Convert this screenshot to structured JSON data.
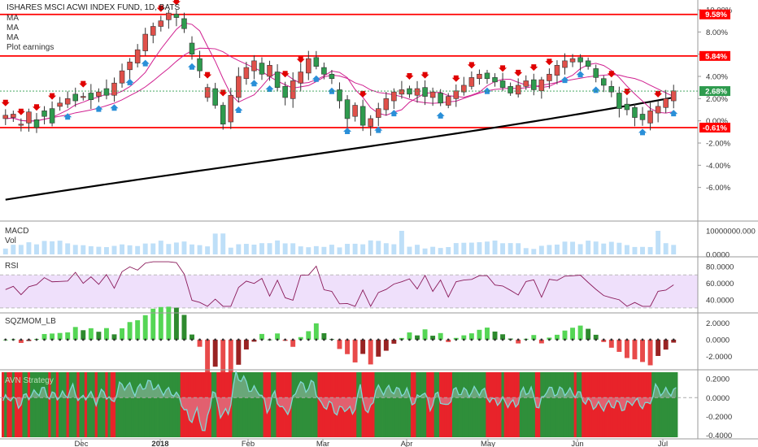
{
  "header": {
    "title": "ISHARES MSCI ACWI INDEX FUND, 1D, BATS",
    "legend": [
      "MA",
      "MA",
      "MA",
      "Plot earnings"
    ]
  },
  "colors": {
    "up": "#2e9b4e",
    "down": "#e0504a",
    "level": "#ff0000",
    "ma_long": "#000000",
    "ma_short": "#d02090",
    "arrow_up": "#2a8fd8",
    "arrow_down": "#e00000",
    "rsi_band": "#efe0fb",
    "rsi_line": "#8a1a5a",
    "vol": "#a8d4f5",
    "aqua": "#7fd9d4",
    "sqz_bright_green": "#55d655",
    "sqz_dark_green": "#2e8a2e",
    "sqz_red": "#e84a4a",
    "sqz_dark_red": "#992222",
    "bg_green": "#2f8f3a",
    "bg_red": "#e8232a"
  },
  "chart_data": [
    {
      "type": "candlestick",
      "name": "price",
      "x_labels": [
        "Dec",
        "2018",
        "Feb",
        "Mar",
        "Apr",
        "May",
        "Jun",
        "Jul"
      ],
      "y_ticks": [
        "10.00%",
        "8.00%",
        "6.00%",
        "4.00%",
        "2.00%",
        "0.00%",
        "-2.00%",
        "-4.00%",
        "-6.00%"
      ],
      "ylim": [
        -8,
        10
      ],
      "levels": [
        {
          "label": "9.58%",
          "value": 9.58
        },
        {
          "label": "5.84%",
          "value": 5.84
        },
        {
          "label": "-0.61%",
          "value": -0.61
        }
      ],
      "last_label": "2.68%",
      "last_value": 2.68,
      "points": [
        [
          0.5,
          0.2
        ],
        [
          0.6,
          0.3
        ],
        [
          -0.3,
          -0.4
        ],
        [
          0.8,
          -0.2
        ],
        [
          -0.6,
          0.1
        ],
        [
          0.4,
          0.9
        ],
        [
          -0.2,
          1.1
        ],
        [
          1.6,
          1.3
        ],
        [
          2.0,
          1.5
        ],
        [
          1.8,
          2.4
        ],
        [
          2.2,
          2.1
        ],
        [
          1.9,
          2.5
        ],
        [
          2.6,
          2.2
        ],
        [
          2.3,
          2.9
        ],
        [
          3.4,
          2.3
        ],
        [
          4.5,
          3.4
        ],
        [
          5.3,
          4.6
        ],
        [
          6.4,
          5.2
        ],
        [
          7.8,
          6.3
        ],
        [
          8.5,
          7.7
        ],
        [
          9.0,
          8.5
        ],
        [
          9.7,
          9.1
        ],
        [
          9.3,
          9.6
        ],
        [
          8.3,
          9.2
        ],
        [
          6.0,
          7.0
        ],
        [
          4.5,
          5.6
        ],
        [
          3.0,
          2.1
        ],
        [
          1.4,
          2.9
        ],
        [
          -0.3,
          1.4
        ],
        [
          2.3,
          -0.1
        ],
        [
          4.0,
          2.1
        ],
        [
          4.8,
          3.8
        ],
        [
          5.4,
          4.5
        ],
        [
          4.2,
          5.2
        ],
        [
          5.0,
          4.0
        ],
        [
          3.0,
          4.4
        ],
        [
          2.1,
          3.1
        ],
        [
          3.6,
          2.0
        ],
        [
          4.4,
          3.4
        ],
        [
          5.6,
          4.3
        ],
        [
          4.9,
          5.7
        ],
        [
          4.2,
          4.8
        ],
        [
          3.8,
          4.2
        ],
        [
          1.8,
          2.8
        ],
        [
          0.2,
          1.9
        ],
        [
          1.4,
          0.4
        ],
        [
          -0.4,
          1.3
        ],
        [
          0.2,
          -0.5
        ],
        [
          1.1,
          0.3
        ],
        [
          2.0,
          1.0
        ],
        [
          2.6,
          1.8
        ],
        [
          2.8,
          2.4
        ],
        [
          2.4,
          2.9
        ],
        [
          2.9,
          2.3
        ],
        [
          2.2,
          3.0
        ],
        [
          2.6,
          2.1
        ],
        [
          1.6,
          2.5
        ],
        [
          2.2,
          1.4
        ],
        [
          2.7,
          2.0
        ],
        [
          3.2,
          2.6
        ],
        [
          3.9,
          3.1
        ],
        [
          4.2,
          3.8
        ],
        [
          3.8,
          4.3
        ],
        [
          3.5,
          3.9
        ],
        [
          3.0,
          3.6
        ],
        [
          2.5,
          3.1
        ],
        [
          3.2,
          2.4
        ],
        [
          3.6,
          3.1
        ],
        [
          2.8,
          3.7
        ],
        [
          3.7,
          2.7
        ],
        [
          4.2,
          3.6
        ],
        [
          5.0,
          4.1
        ],
        [
          5.4,
          4.8
        ],
        [
          5.6,
          5.3
        ],
        [
          5.3,
          5.7
        ],
        [
          4.9,
          5.4
        ],
        [
          3.9,
          4.7
        ],
        [
          3.2,
          3.8
        ],
        [
          2.6,
          3.1
        ],
        [
          1.1,
          2.5
        ],
        [
          1.0,
          1.5
        ],
        [
          0.3,
          1.2
        ],
        [
          0.1,
          0.6
        ],
        [
          0.9,
          -0.2
        ],
        [
          1.3,
          0.7
        ],
        [
          2.0,
          1.2
        ],
        [
          2.7,
          1.8
        ]
      ],
      "indicators": [
        "MA (black, long)",
        "MA (magenta, short)",
        "MA (magenta, mid)",
        "Plot earnings"
      ]
    },
    {
      "type": "bar",
      "name": "volume",
      "labels": [
        "MACD",
        "Vol"
      ],
      "y_ticks": [
        "10000000.000",
        "0.0000"
      ]
    },
    {
      "type": "line",
      "name": "RSI",
      "label": "RSI",
      "y_ticks": [
        "80.0000",
        "60.0000",
        "40.0000"
      ],
      "ylim": [
        25,
        90
      ],
      "band": [
        30,
        70
      ]
    },
    {
      "type": "bar",
      "name": "SQZMOM_LB",
      "label": "SQZMOM_LB",
      "y_ticks": [
        "2.0000",
        "0.0000",
        "-2.0000"
      ],
      "ylim": [
        -3.4,
        3.0
      ]
    },
    {
      "type": "area",
      "name": "strategy",
      "label": "AVN Strategy",
      "y_ticks": [
        "0.2000",
        "0.0000",
        "-0.2000",
        "-0.4000"
      ],
      "ylim": [
        -0.42,
        0.27
      ]
    }
  ]
}
